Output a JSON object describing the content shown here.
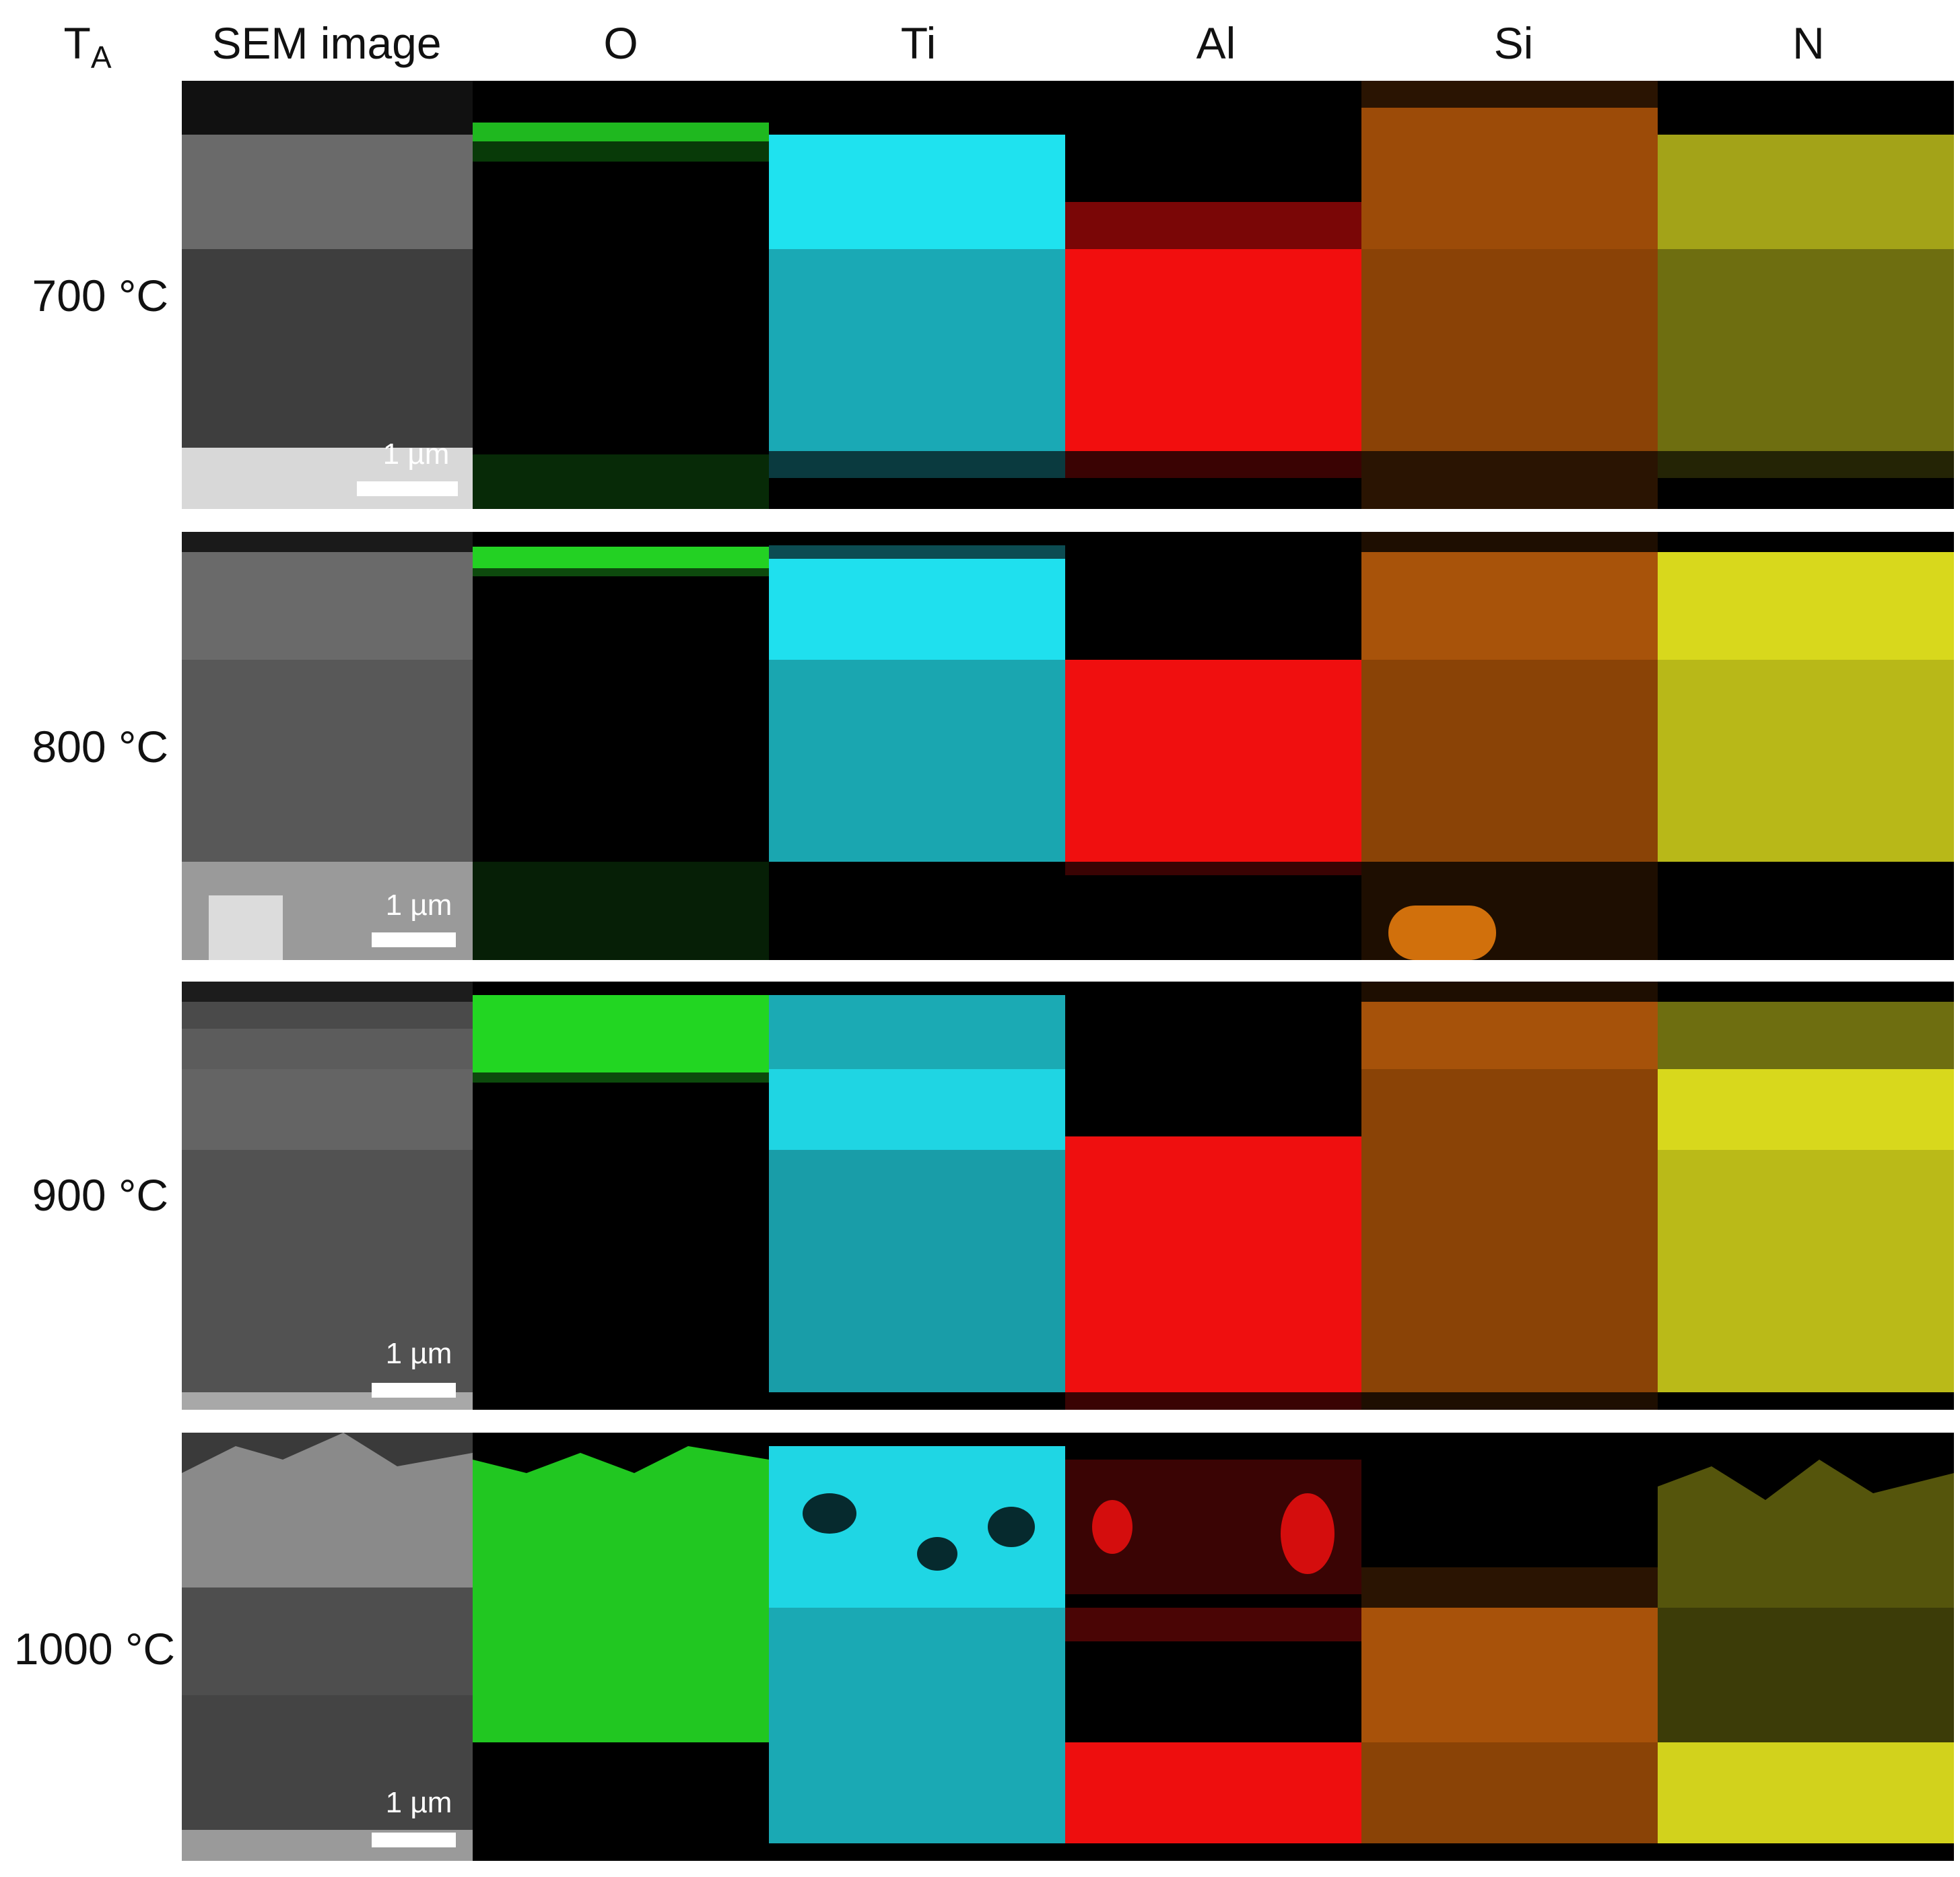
{
  "headers": {
    "ta_main": "T",
    "ta_sub": "A",
    "sem": "SEM image",
    "o": "O",
    "ti": "Ti",
    "al": "Al",
    "si": "Si",
    "n": "N"
  },
  "rows": [
    {
      "label": "700 °C",
      "scale": "1 µm"
    },
    {
      "label": "800 °C",
      "scale": "1 µm"
    },
    {
      "label": "900 °C",
      "scale": "1 µm"
    },
    {
      "label": "1000 °C",
      "scale": "1 µm"
    }
  ],
  "element_colors": {
    "O": "#22dd22",
    "Ti": "#22d8e8",
    "Al": "#ff1010",
    "Si": "#c8620a",
    "N": "#d8d81a"
  }
}
